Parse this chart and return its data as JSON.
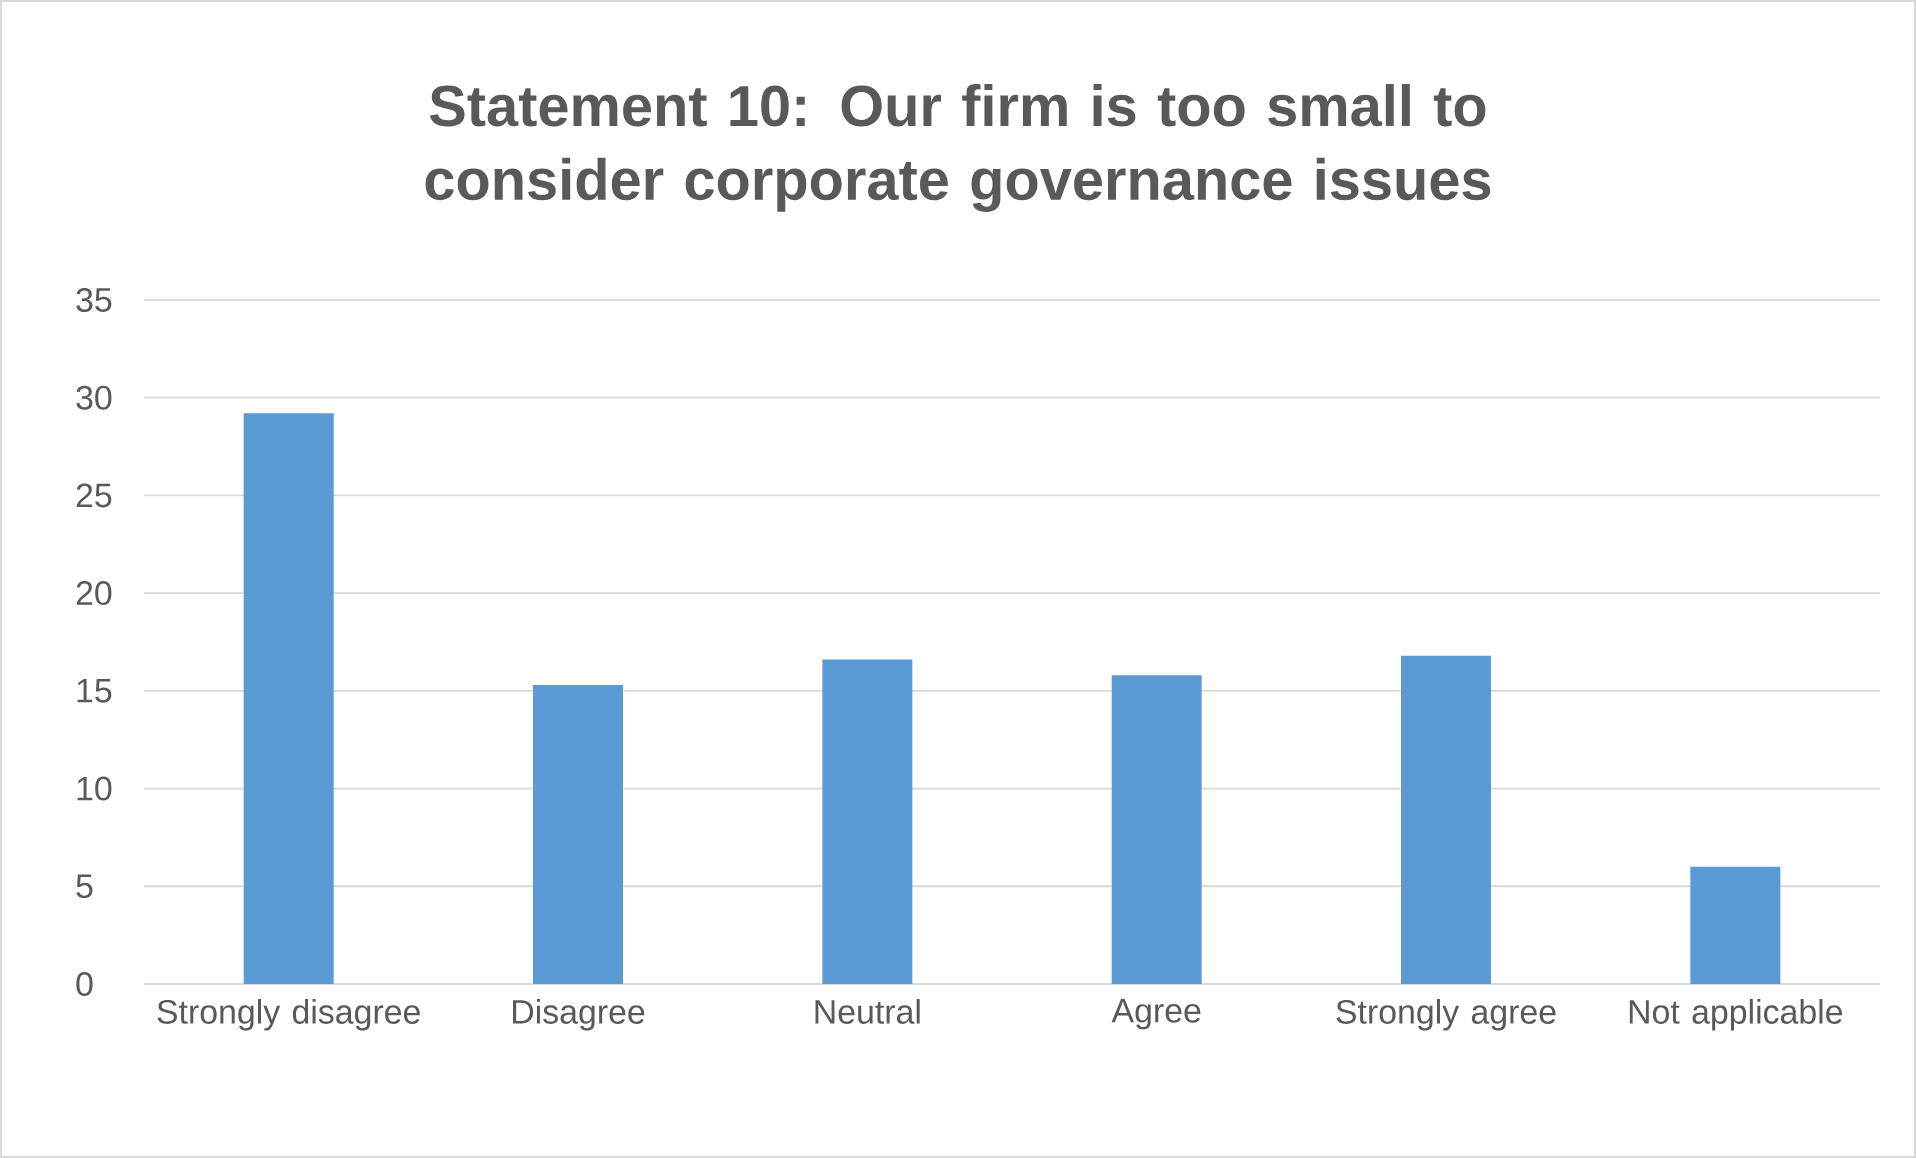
{
  "chart_data": {
    "type": "bar",
    "title": "Statement 10: Our firm is too small to consider corporate governance issues",
    "categories": [
      "Strongly disagree",
      "Disagree",
      "Neutral",
      "Agree",
      "Strongly agree",
      "Not applicable"
    ],
    "values": [
      29.2,
      15.3,
      16.6,
      15.8,
      16.8,
      6.0
    ],
    "color": "#5b9bd5",
    "ylim": [
      0,
      35
    ],
    "yticks": [
      0,
      5,
      10,
      15,
      20,
      25,
      30,
      35
    ],
    "grid": "y"
  }
}
